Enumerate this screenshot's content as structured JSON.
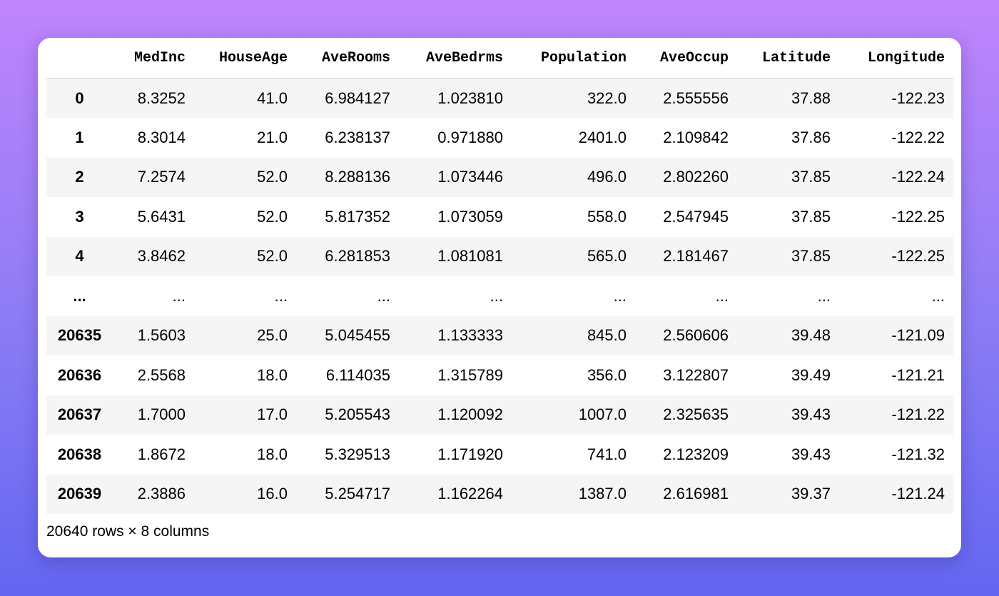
{
  "table": {
    "columns": [
      "MedInc",
      "HouseAge",
      "AveRooms",
      "AveBedrms",
      "Population",
      "AveOccup",
      "Latitude",
      "Longitude"
    ],
    "rows": [
      {
        "index": "0",
        "cells": [
          "8.3252",
          "41.0",
          "6.984127",
          "1.023810",
          "322.0",
          "2.555556",
          "37.88",
          "-122.23"
        ]
      },
      {
        "index": "1",
        "cells": [
          "8.3014",
          "21.0",
          "6.238137",
          "0.971880",
          "2401.0",
          "2.109842",
          "37.86",
          "-122.22"
        ]
      },
      {
        "index": "2",
        "cells": [
          "7.2574",
          "52.0",
          "8.288136",
          "1.073446",
          "496.0",
          "2.802260",
          "37.85",
          "-122.24"
        ]
      },
      {
        "index": "3",
        "cells": [
          "5.6431",
          "52.0",
          "5.817352",
          "1.073059",
          "558.0",
          "2.547945",
          "37.85",
          "-122.25"
        ]
      },
      {
        "index": "4",
        "cells": [
          "3.8462",
          "52.0",
          "6.281853",
          "1.081081",
          "565.0",
          "2.181467",
          "37.85",
          "-122.25"
        ]
      },
      {
        "index": "...",
        "cells": [
          "...",
          "...",
          "...",
          "...",
          "...",
          "...",
          "...",
          "..."
        ]
      },
      {
        "index": "20635",
        "cells": [
          "1.5603",
          "25.0",
          "5.045455",
          "1.133333",
          "845.0",
          "2.560606",
          "39.48",
          "-121.09"
        ]
      },
      {
        "index": "20636",
        "cells": [
          "2.5568",
          "18.0",
          "6.114035",
          "1.315789",
          "356.0",
          "3.122807",
          "39.49",
          "-121.21"
        ]
      },
      {
        "index": "20637",
        "cells": [
          "1.7000",
          "17.0",
          "5.205543",
          "1.120092",
          "1007.0",
          "2.325635",
          "39.43",
          "-121.22"
        ]
      },
      {
        "index": "20638",
        "cells": [
          "1.8672",
          "18.0",
          "5.329513",
          "1.171920",
          "741.0",
          "2.123209",
          "39.43",
          "-121.32"
        ]
      },
      {
        "index": "20639",
        "cells": [
          "2.3886",
          "16.0",
          "5.254717",
          "1.162264",
          "1387.0",
          "2.616981",
          "39.37",
          "-121.24"
        ]
      }
    ],
    "footer": "20640 rows × 8 columns"
  }
}
